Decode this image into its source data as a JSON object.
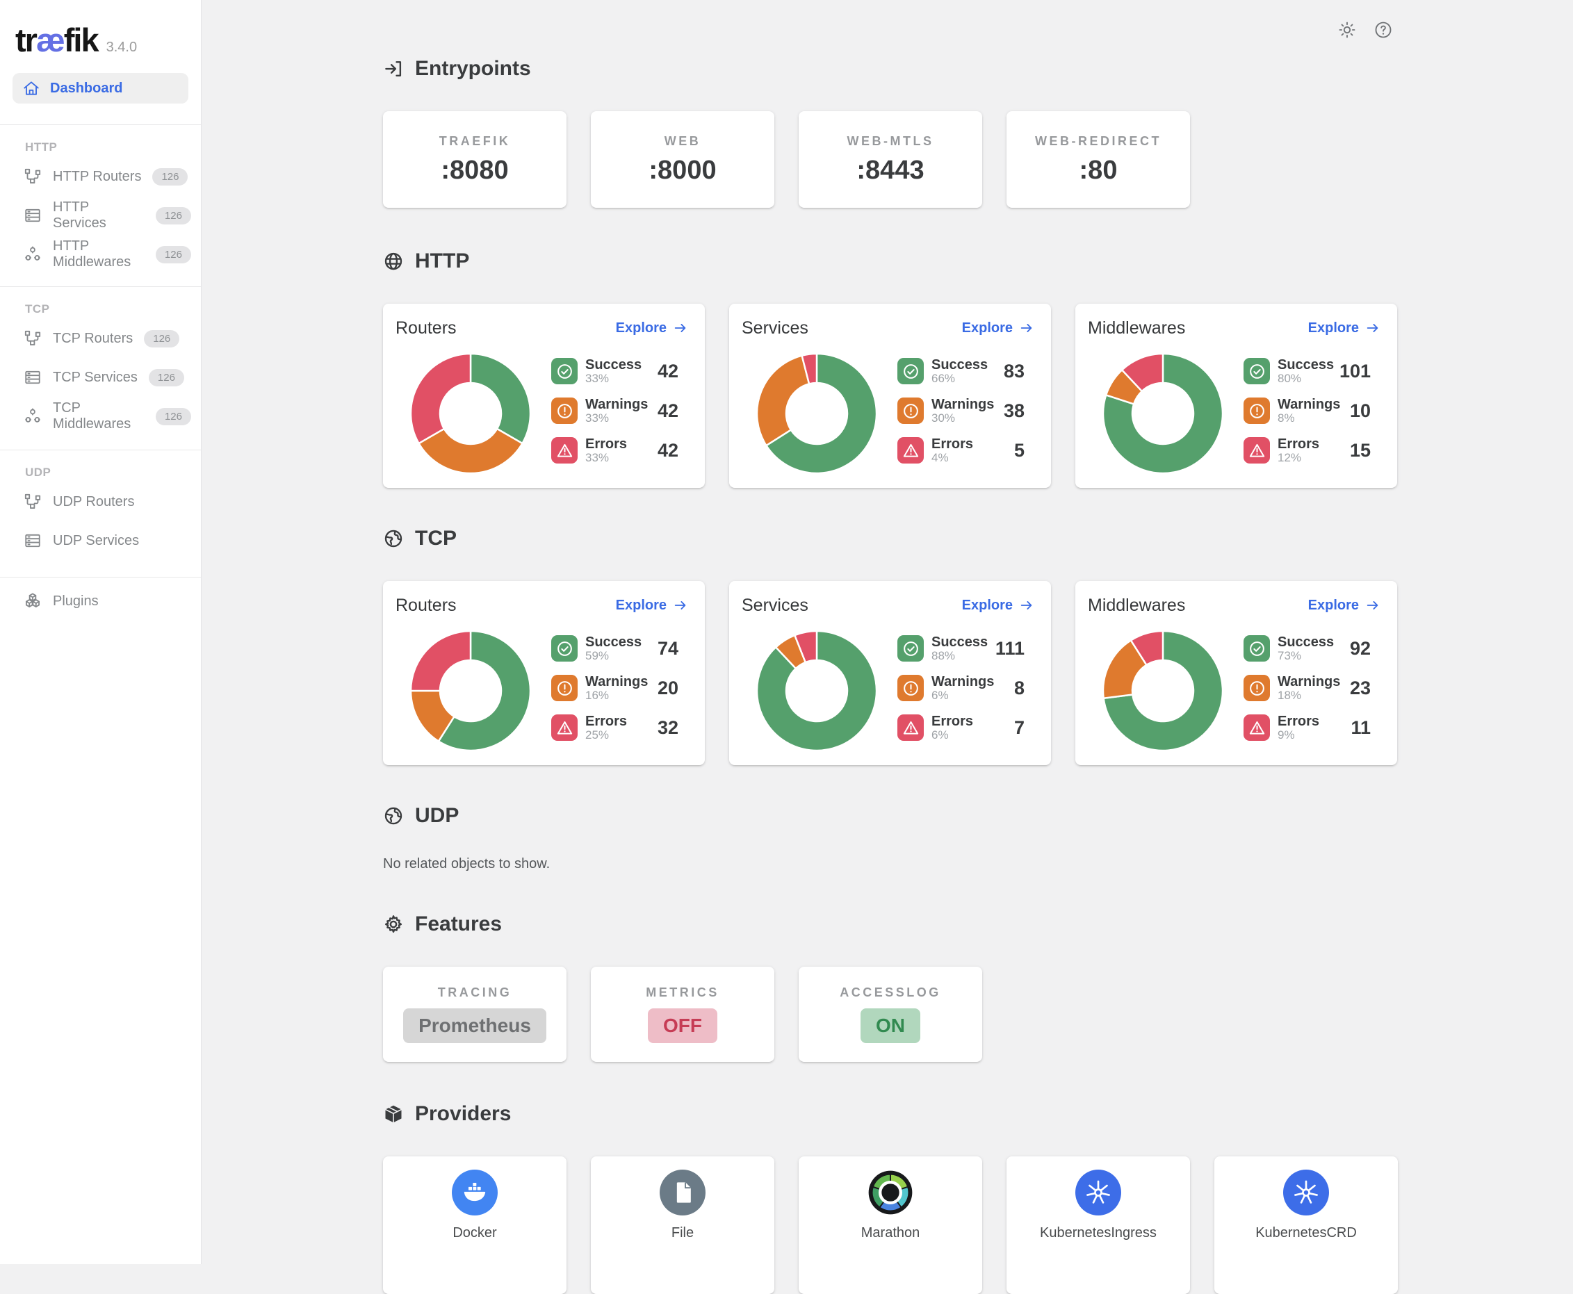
{
  "app": {
    "logo_pre": "tr",
    "logo_ae": "æ",
    "logo_post": "fik",
    "version": "3.4.0"
  },
  "sidebar": {
    "dashboard": {
      "label": "Dashboard"
    },
    "sections": [
      {
        "label": "HTTP",
        "items": [
          {
            "label": "HTTP Routers",
            "badge": "126"
          },
          {
            "label": "HTTP Services",
            "badge": "126"
          },
          {
            "label": "HTTP Middlewares",
            "badge": "126"
          }
        ]
      },
      {
        "label": "TCP",
        "items": [
          {
            "label": "TCP Routers",
            "badge": "126"
          },
          {
            "label": "TCP Services",
            "badge": "126"
          },
          {
            "label": "TCP Middlewares",
            "badge": "126"
          }
        ]
      },
      {
        "label": "UDP",
        "items": [
          {
            "label": "UDP Routers"
          },
          {
            "label": "UDP Services"
          }
        ]
      }
    ],
    "plugins": {
      "label": "Plugins"
    }
  },
  "entrypoints": {
    "title": "Entrypoints",
    "cards": [
      {
        "label": "TRAEFIK",
        "value": ":8080"
      },
      {
        "label": "WEB",
        "value": ":8000"
      },
      {
        "label": "WEB-MTLS",
        "value": ":8443"
      },
      {
        "label": "WEB-REDIRECT",
        "value": ":80"
      }
    ]
  },
  "http": {
    "title": "HTTP",
    "cards": [
      {
        "title": "Routers",
        "explore": "Explore",
        "segments": [
          {
            "label": "Success",
            "pct": "33%",
            "value": "42",
            "tone": "success"
          },
          {
            "label": "Warnings",
            "pct": "33%",
            "value": "42",
            "tone": "warning"
          },
          {
            "label": "Errors",
            "pct": "33%",
            "value": "42",
            "tone": "error"
          }
        ]
      },
      {
        "title": "Services",
        "explore": "Explore",
        "segments": [
          {
            "label": "Success",
            "pct": "66%",
            "value": "83",
            "tone": "success"
          },
          {
            "label": "Warnings",
            "pct": "30%",
            "value": "38",
            "tone": "warning"
          },
          {
            "label": "Errors",
            "pct": "4%",
            "value": "5",
            "tone": "error"
          }
        ]
      },
      {
        "title": "Middlewares",
        "explore": "Explore",
        "segments": [
          {
            "label": "Success",
            "pct": "80%",
            "value": "101",
            "tone": "success"
          },
          {
            "label": "Warnings",
            "pct": "8%",
            "value": "10",
            "tone": "warning"
          },
          {
            "label": "Errors",
            "pct": "12%",
            "value": "15",
            "tone": "error"
          }
        ]
      }
    ]
  },
  "tcp": {
    "title": "TCP",
    "cards": [
      {
        "title": "Routers",
        "explore": "Explore",
        "segments": [
          {
            "label": "Success",
            "pct": "59%",
            "value": "74",
            "tone": "success"
          },
          {
            "label": "Warnings",
            "pct": "16%",
            "value": "20",
            "tone": "warning"
          },
          {
            "label": "Errors",
            "pct": "25%",
            "value": "32",
            "tone": "error"
          }
        ]
      },
      {
        "title": "Services",
        "explore": "Explore",
        "segments": [
          {
            "label": "Success",
            "pct": "88%",
            "value": "111",
            "tone": "success"
          },
          {
            "label": "Warnings",
            "pct": "6%",
            "value": "8",
            "tone": "warning"
          },
          {
            "label": "Errors",
            "pct": "6%",
            "value": "7",
            "tone": "error"
          }
        ]
      },
      {
        "title": "Middlewares",
        "explore": "Explore",
        "segments": [
          {
            "label": "Success",
            "pct": "73%",
            "value": "92",
            "tone": "success"
          },
          {
            "label": "Warnings",
            "pct": "18%",
            "value": "23",
            "tone": "warning"
          },
          {
            "label": "Errors",
            "pct": "9%",
            "value": "11",
            "tone": "error"
          }
        ]
      }
    ]
  },
  "udp": {
    "title": "UDP",
    "empty": "No related objects to show."
  },
  "features": {
    "title": "Features",
    "cards": [
      {
        "label": "TRACING",
        "value": "Prometheus",
        "tone": "neutral"
      },
      {
        "label": "METRICS",
        "value": "OFF",
        "tone": "off"
      },
      {
        "label": "ACCESSLOG",
        "value": "ON",
        "tone": "on"
      }
    ]
  },
  "providers": {
    "title": "Providers",
    "items": [
      {
        "name": "Docker"
      },
      {
        "name": "File"
      },
      {
        "name": "Marathon"
      },
      {
        "name": "KubernetesIngress"
      },
      {
        "name": "KubernetesCRD"
      }
    ]
  },
  "colors": {
    "success": "#55a06c",
    "warning": "#df7a2e",
    "error": "#e15065",
    "accent": "#3a6be4",
    "logo": "#6470e4",
    "neutral_bg": "#d6d6d6",
    "neutral_text": "#6e7072",
    "off_bg": "#eebdc7",
    "off_text": "#c63c55",
    "on_bg": "#b1d7bd",
    "on_text": "#318a50",
    "docker": "#4285f2",
    "file": "#6b7b87",
    "k8s": "#3d6de8"
  }
}
